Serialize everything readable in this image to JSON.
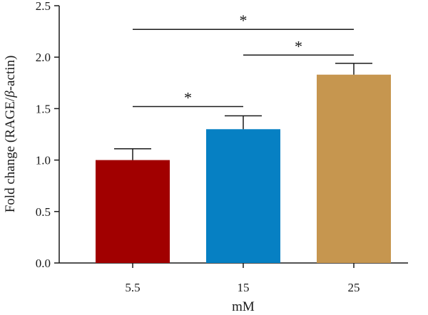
{
  "chart_data": {
    "type": "bar",
    "title": "",
    "xlabel": "mM",
    "ylabel_prefix": "Fold change (RAGE/",
    "ylabel_italic": "β",
    "ylabel_suffix": "-actin)",
    "categories": [
      "5.5",
      "15",
      "25"
    ],
    "values": [
      1.0,
      1.3,
      1.83
    ],
    "errors": [
      0.11,
      0.13,
      0.11
    ],
    "colors": [
      "#a10000",
      "#0680c3",
      "#c6964f"
    ],
    "ylim": [
      0,
      2.5
    ],
    "yticks": [
      0.0,
      0.5,
      1.0,
      1.5,
      2.0,
      2.5
    ],
    "ytick_labels": [
      "0.0",
      "0.5",
      "1.0",
      "1.5",
      "2.0",
      "2.5"
    ],
    "grid": false,
    "significance": [
      {
        "from": 0,
        "to": 1,
        "y": 1.52,
        "label": "*"
      },
      {
        "from": 1,
        "to": 2,
        "y": 2.02,
        "label": "*"
      },
      {
        "from": 0,
        "to": 2,
        "y": 2.27,
        "label": "*"
      }
    ]
  }
}
